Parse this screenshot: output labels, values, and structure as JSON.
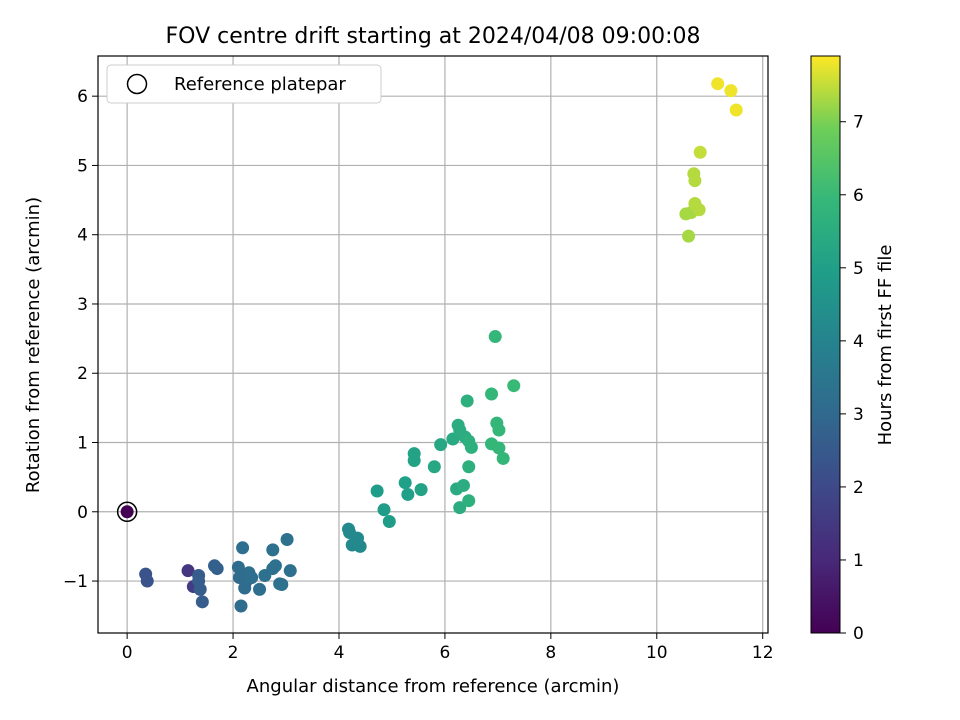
{
  "chart_data": {
    "type": "scatter",
    "title": "FOV centre drift starting at 2024/04/08 09:00:08",
    "xlabel": "Angular distance from reference (arcmin)",
    "ylabel": "Rotation from reference (arcmin)",
    "xlim": [
      -0.55,
      12.1
    ],
    "ylim": [
      -1.75,
      6.58
    ],
    "xticks": [
      0,
      2,
      4,
      6,
      8,
      10,
      12
    ],
    "yticks": [
      -1,
      0,
      1,
      2,
      3,
      4,
      5,
      6
    ],
    "grid": true,
    "legend": {
      "placement": "top-left",
      "entries": [
        "Reference platepar"
      ]
    },
    "colorbar": {
      "label": "Hours from first FF file",
      "range": [
        0,
        7.9
      ],
      "ticks": [
        0,
        1,
        2,
        3,
        4,
        5,
        6,
        7
      ],
      "colormap": "viridis"
    },
    "reference_point": {
      "x": 0,
      "y": 0,
      "hours": 0
    },
    "points": [
      {
        "x": 0.35,
        "y": -0.9,
        "hours": 2.3
      },
      {
        "x": 0.38,
        "y": -1.0,
        "hours": 2.3
      },
      {
        "x": 1.15,
        "y": -0.85,
        "hours": 1.4
      },
      {
        "x": 1.25,
        "y": -1.08,
        "hours": 1.6
      },
      {
        "x": 1.35,
        "y": -0.92,
        "hours": 2.6
      },
      {
        "x": 1.35,
        "y": -1.0,
        "hours": 2.6
      },
      {
        "x": 1.38,
        "y": -1.12,
        "hours": 2.6
      },
      {
        "x": 1.42,
        "y": -1.3,
        "hours": 2.6
      },
      {
        "x": 1.65,
        "y": -0.78,
        "hours": 2.7
      },
      {
        "x": 1.7,
        "y": -0.82,
        "hours": 2.7
      },
      {
        "x": 2.1,
        "y": -0.8,
        "hours": 3.1
      },
      {
        "x": 2.12,
        "y": -0.95,
        "hours": 3.1
      },
      {
        "x": 2.18,
        "y": -0.52,
        "hours": 3.2
      },
      {
        "x": 2.15,
        "y": -1.36,
        "hours": 3.1
      },
      {
        "x": 2.22,
        "y": -1.1,
        "hours": 3.1
      },
      {
        "x": 2.25,
        "y": -1.0,
        "hours": 3.1
      },
      {
        "x": 2.3,
        "y": -0.88,
        "hours": 3.2
      },
      {
        "x": 2.35,
        "y": -0.95,
        "hours": 3.2
      },
      {
        "x": 2.5,
        "y": -1.12,
        "hours": 3.2
      },
      {
        "x": 2.6,
        "y": -0.92,
        "hours": 3.3
      },
      {
        "x": 2.75,
        "y": -0.55,
        "hours": 3.3
      },
      {
        "x": 2.75,
        "y": -0.82,
        "hours": 3.3
      },
      {
        "x": 2.8,
        "y": -0.78,
        "hours": 3.3
      },
      {
        "x": 2.88,
        "y": -1.04,
        "hours": 3.3
      },
      {
        "x": 2.92,
        "y": -1.05,
        "hours": 3.3
      },
      {
        "x": 3.02,
        "y": -0.4,
        "hours": 3.3
      },
      {
        "x": 3.08,
        "y": -0.85,
        "hours": 3.3
      },
      {
        "x": 4.18,
        "y": -0.25,
        "hours": 4.2
      },
      {
        "x": 4.2,
        "y": -0.3,
        "hours": 4.2
      },
      {
        "x": 4.25,
        "y": -0.48,
        "hours": 4.2
      },
      {
        "x": 4.35,
        "y": -0.38,
        "hours": 4.2
      },
      {
        "x": 4.4,
        "y": -0.5,
        "hours": 4.2
      },
      {
        "x": 4.72,
        "y": 0.3,
        "hours": 4.9
      },
      {
        "x": 4.85,
        "y": 0.03,
        "hours": 4.9
      },
      {
        "x": 4.95,
        "y": -0.14,
        "hours": 4.9
      },
      {
        "x": 5.25,
        "y": 0.42,
        "hours": 5.0
      },
      {
        "x": 5.3,
        "y": 0.25,
        "hours": 5.0
      },
      {
        "x": 5.42,
        "y": 0.84,
        "hours": 5.1
      },
      {
        "x": 5.42,
        "y": 0.74,
        "hours": 5.1
      },
      {
        "x": 5.55,
        "y": 0.32,
        "hours": 5.1
      },
      {
        "x": 5.8,
        "y": 0.65,
        "hours": 5.3
      },
      {
        "x": 5.92,
        "y": 0.97,
        "hours": 5.3
      },
      {
        "x": 6.15,
        "y": 1.05,
        "hours": 5.4
      },
      {
        "x": 6.22,
        "y": 0.33,
        "hours": 5.4
      },
      {
        "x": 6.25,
        "y": 1.25,
        "hours": 5.5
      },
      {
        "x": 6.28,
        "y": 1.18,
        "hours": 5.5
      },
      {
        "x": 6.28,
        "y": 0.06,
        "hours": 5.5
      },
      {
        "x": 6.35,
        "y": 0.38,
        "hours": 5.5
      },
      {
        "x": 6.38,
        "y": 1.08,
        "hours": 5.5
      },
      {
        "x": 6.42,
        "y": 1.6,
        "hours": 5.6
      },
      {
        "x": 6.45,
        "y": 1.02,
        "hours": 5.6
      },
      {
        "x": 6.45,
        "y": 0.65,
        "hours": 5.6
      },
      {
        "x": 6.45,
        "y": 0.16,
        "hours": 5.6
      },
      {
        "x": 6.5,
        "y": 0.93,
        "hours": 5.6
      },
      {
        "x": 6.88,
        "y": 1.7,
        "hours": 5.9
      },
      {
        "x": 6.88,
        "y": 0.98,
        "hours": 5.9
      },
      {
        "x": 6.95,
        "y": 2.53,
        "hours": 5.9
      },
      {
        "x": 6.98,
        "y": 1.28,
        "hours": 5.9
      },
      {
        "x": 7.02,
        "y": 1.18,
        "hours": 5.9
      },
      {
        "x": 7.02,
        "y": 0.92,
        "hours": 5.9
      },
      {
        "x": 7.1,
        "y": 0.77,
        "hours": 5.9
      },
      {
        "x": 7.3,
        "y": 1.82,
        "hours": 6.0
      },
      {
        "x": 10.55,
        "y": 4.3,
        "hours": 7.3
      },
      {
        "x": 10.6,
        "y": 3.98,
        "hours": 7.3
      },
      {
        "x": 10.65,
        "y": 4.32,
        "hours": 7.3
      },
      {
        "x": 10.7,
        "y": 4.88,
        "hours": 7.4
      },
      {
        "x": 10.72,
        "y": 4.78,
        "hours": 7.4
      },
      {
        "x": 10.72,
        "y": 4.45,
        "hours": 7.4
      },
      {
        "x": 10.8,
        "y": 4.36,
        "hours": 7.4
      },
      {
        "x": 10.82,
        "y": 5.19,
        "hours": 7.5
      },
      {
        "x": 11.15,
        "y": 6.18,
        "hours": 7.8
      },
      {
        "x": 11.4,
        "y": 6.08,
        "hours": 7.8
      },
      {
        "x": 11.5,
        "y": 5.8,
        "hours": 7.8
      }
    ]
  }
}
